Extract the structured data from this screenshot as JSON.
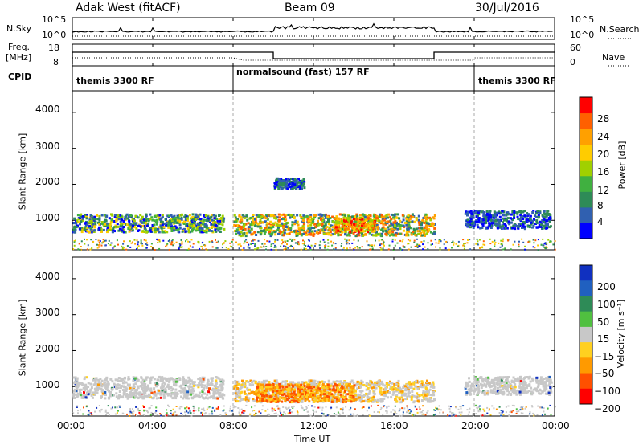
{
  "header": {
    "title": "Adak West (fitACF)",
    "beam": "Beam 09",
    "date": "30/Jul/2016"
  },
  "panels": {
    "nsky": {
      "label": "N.Sky",
      "right_label": "N.Search",
      "tick_top": "10^5",
      "tick_bottom": "10^0",
      "rtick_top": "10^5",
      "rtick_bottom": "10^0"
    },
    "freq": {
      "label_top": "Freq.",
      "label_unit": "[MHz]",
      "tick_top": "18",
      "tick_bottom": "8",
      "rtick_top": "60",
      "rtick_bottom": "0",
      "right_label": "Nave"
    },
    "cpid": {
      "label": "CPID",
      "segments": [
        "themis 3300 RF",
        "normalsound (fast) 157 RF",
        "themis 3300 RF"
      ]
    }
  },
  "chart_data": [
    {
      "type": "heatmap",
      "name": "power",
      "ylabel": "Slant Range [km]",
      "yticks": [
        "1000",
        "2000",
        "3000",
        "4000"
      ],
      "ylim": [
        180,
        4600
      ],
      "xlim": [
        0,
        24
      ],
      "colorbar": {
        "label": "Power [dB]",
        "ticks": [
          "4",
          "8",
          "12",
          "16",
          "20",
          "24",
          "28"
        ],
        "colors": [
          "#0000ff",
          "#3060b0",
          "#2e8b57",
          "#40b040",
          "#a0d000",
          "#ffcc00",
          "#ffa000",
          "#ff6000",
          "#ff0000"
        ]
      },
      "features": [
        {
          "hours": [
            0,
            7.5
          ],
          "range_km": [
            700,
            1200
          ],
          "level": "low-mid"
        },
        {
          "hours": [
            8,
            18
          ],
          "range_km": [
            600,
            1200
          ],
          "level": "mid-high"
        },
        {
          "hours": [
            10,
            11.5
          ],
          "range_km": [
            1900,
            2200
          ],
          "level": "low"
        },
        {
          "hours": [
            13,
            15
          ],
          "range_km": [
            700,
            1100
          ],
          "level": "high"
        },
        {
          "hours": [
            19.5,
            23.8
          ],
          "range_km": [
            800,
            1300
          ],
          "level": "low"
        }
      ]
    },
    {
      "type": "heatmap",
      "name": "velocity",
      "ylabel": "Slant Range [km]",
      "yticks": [
        "1000",
        "2000",
        "3000",
        "4000"
      ],
      "ylim": [
        180,
        4600
      ],
      "xlim": [
        0,
        24
      ],
      "colorbar": {
        "label": "Velocity [m s⁻¹]",
        "ticks": [
          "200",
          "100",
          "50",
          "15",
          "−15",
          "−50",
          "−100",
          "−200"
        ],
        "colors": [
          "#1030c0",
          "#2060c0",
          "#2e8b57",
          "#50c040",
          "#c8c8c8",
          "#ffd020",
          "#ff9a00",
          "#ff5000",
          "#ff0000"
        ]
      },
      "features": [
        {
          "hours": [
            0,
            7.5
          ],
          "range_km": [
            700,
            1300
          ],
          "level": "near-zero"
        },
        {
          "hours": [
            8,
            18
          ],
          "range_km": [
            600,
            1200
          ],
          "level": "near-zero/negative"
        },
        {
          "hours": [
            9,
            14
          ],
          "range_km": [
            600,
            1100
          ],
          "level": "negative"
        },
        {
          "hours": [
            19.5,
            23.8
          ],
          "range_km": [
            800,
            1300
          ],
          "level": "near-zero"
        }
      ]
    }
  ],
  "xaxis": {
    "label": "Time UT",
    "ticks": [
      "00:00",
      "04:00",
      "08:00",
      "12:00",
      "16:00",
      "20:00",
      "00:00"
    ]
  }
}
